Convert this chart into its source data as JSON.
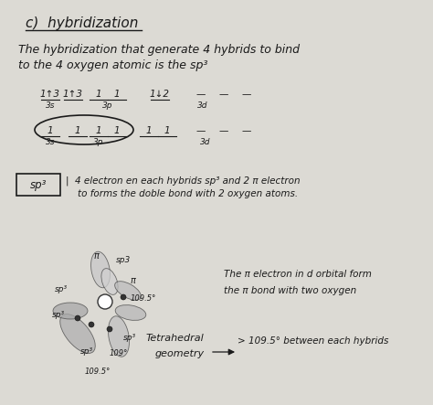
{
  "bg_color": "#e8e6e0",
  "text_color": "#1a1a1a",
  "title": "c)  hybridization",
  "line1": "The hybridization that generate 4 hybrids to bind",
  "line2": "to the 4 oxygen atomic is the sp³",
  "sp3_desc1": "4 electron en each hybrids sp³ and 2 π electron",
  "sp3_desc2": "to forms the doble bond with 2 oxygen atoms.",
  "note1": "The π electron in d orbital form",
  "note2": "the π bond with two oxygen",
  "note3": "> 109.5° between each hybrids"
}
